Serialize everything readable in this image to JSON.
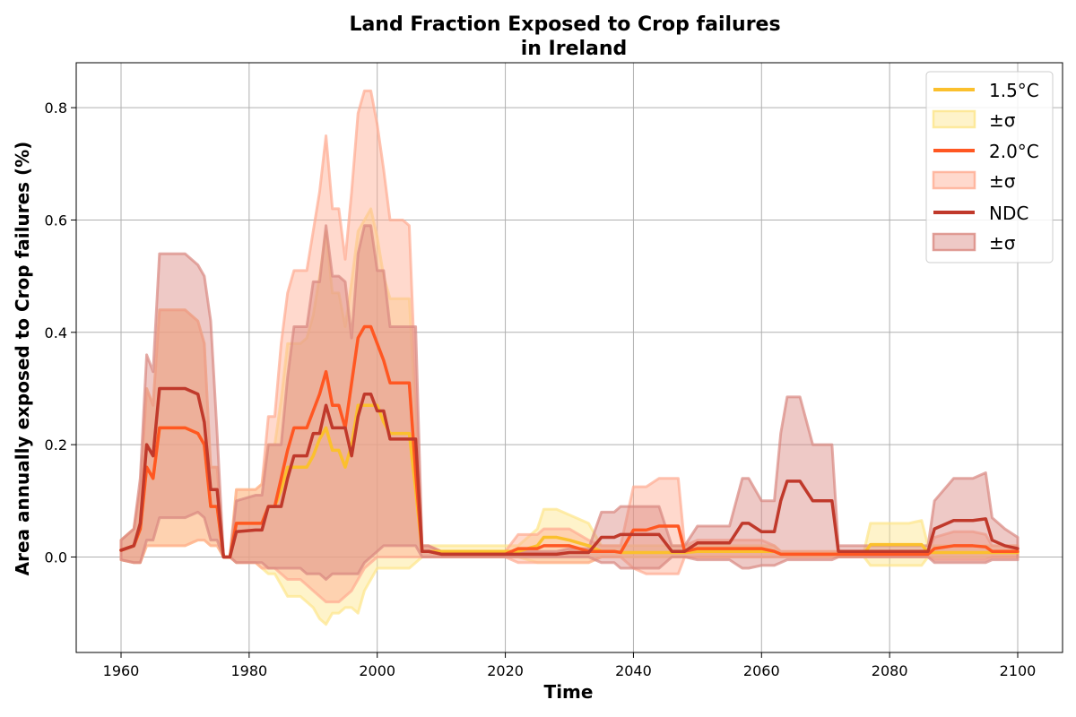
{
  "chart_data": {
    "type": "line",
    "title": "Land Fraction Exposed to Crop failures",
    "subtitle": "in Ireland",
    "xlabel": "Time",
    "ylabel": "Area annually exposed to Crop failures (%)",
    "xlim": [
      1953,
      2107
    ],
    "ylim": [
      -0.17,
      0.88
    ],
    "xticks": [
      1960,
      1980,
      2000,
      2020,
      2040,
      2060,
      2080,
      2100
    ],
    "yticks": [
      0.0,
      0.2,
      0.4,
      0.6,
      0.8
    ],
    "grid": true,
    "legend_position": "top-right",
    "legend": [
      "1.5°C",
      "±σ",
      "2.0°C",
      "±σ",
      "NDC",
      "±σ"
    ],
    "x": [
      1960,
      1962,
      1963,
      1964,
      1965,
      1966,
      1970,
      1972,
      1973,
      1974,
      1975,
      1976,
      1977,
      1978,
      1981,
      1982,
      1983,
      1984,
      1985,
      1986,
      1987,
      1988,
      1989,
      1990,
      1991,
      1992,
      1993,
      1994,
      1995,
      1996,
      1997,
      1998,
      1999,
      2000,
      2001,
      2002,
      2003,
      2004,
      2005,
      2006,
      2007,
      2008,
      2010,
      2012,
      2015,
      2020,
      2022,
      2025,
      2026,
      2028,
      2030,
      2033,
      2035,
      2036,
      2037,
      2038,
      2040,
      2042,
      2044,
      2046,
      2047,
      2048,
      2050,
      2052,
      2055,
      2057,
      2058,
      2060,
      2062,
      2063,
      2064,
      2066,
      2068,
      2070,
      2071,
      2072,
      2076,
      2077,
      2080,
      2083,
      2085,
      2086,
      2087,
      2090,
      2093,
      2095,
      2096,
      2098,
      2100
    ],
    "series": [
      {
        "name": "1.5°C",
        "color": "#fbc02d",
        "band_color": "#fde58a",
        "values": [
          0.012,
          0.02,
          0.05,
          0.16,
          0.14,
          0.23,
          0.23,
          0.22,
          0.2,
          0.09,
          0.09,
          0.0,
          0.0,
          0.06,
          0.06,
          0.06,
          0.09,
          0.09,
          0.12,
          0.16,
          0.16,
          0.16,
          0.16,
          0.18,
          0.21,
          0.23,
          0.19,
          0.19,
          0.16,
          0.2,
          0.27,
          0.27,
          0.27,
          0.27,
          0.24,
          0.22,
          0.22,
          0.22,
          0.22,
          0.12,
          0.01,
          0.01,
          0.01,
          0.01,
          0.01,
          0.01,
          0.01,
          0.02,
          0.035,
          0.035,
          0.03,
          0.02,
          0.01,
          0.01,
          0.01,
          0.008,
          0.008,
          0.008,
          0.008,
          0.008,
          0.008,
          0.008,
          0.01,
          0.01,
          0.01,
          0.01,
          0.01,
          0.01,
          0.01,
          0.005,
          0.005,
          0.005,
          0.005,
          0.005,
          0.005,
          0.005,
          0.005,
          0.022,
          0.022,
          0.022,
          0.022,
          0.008,
          0.008,
          0.008,
          0.008,
          0.008,
          0.008,
          0.008,
          0.008
        ],
        "lower": [
          -0.005,
          -0.01,
          -0.01,
          0.02,
          0.02,
          0.02,
          0.02,
          0.03,
          0.03,
          0.02,
          0.02,
          0.0,
          0.0,
          -0.01,
          -0.01,
          -0.02,
          -0.03,
          -0.03,
          -0.05,
          -0.07,
          -0.07,
          -0.07,
          -0.08,
          -0.09,
          -0.11,
          -0.12,
          -0.1,
          -0.1,
          -0.09,
          -0.09,
          -0.1,
          -0.06,
          -0.04,
          -0.02,
          -0.02,
          -0.02,
          -0.02,
          -0.02,
          -0.02,
          -0.01,
          0.0,
          0.0,
          0.0,
          0.0,
          0.0,
          0.0,
          0.0,
          -0.01,
          -0.01,
          -0.01,
          -0.01,
          -0.01,
          0.0,
          0.0,
          0.0,
          0.0,
          0.0,
          0.0,
          0.0,
          0.0,
          0.0,
          0.0,
          0.0,
          0.0,
          0.0,
          0.0,
          0.0,
          0.0,
          0.0,
          0.0,
          0.0,
          0.0,
          0.0,
          0.0,
          0.0,
          0.0,
          0.0,
          -0.015,
          -0.015,
          -0.015,
          -0.015,
          0.0,
          0.0,
          0.0,
          0.0,
          0.0,
          0.0,
          0.0,
          0.0
        ],
        "upper": [
          0.03,
          0.05,
          0.12,
          0.3,
          0.27,
          0.44,
          0.44,
          0.42,
          0.38,
          0.16,
          0.16,
          0.0,
          0.0,
          0.12,
          0.12,
          0.13,
          0.2,
          0.2,
          0.28,
          0.38,
          0.38,
          0.38,
          0.39,
          0.43,
          0.5,
          0.58,
          0.47,
          0.47,
          0.41,
          0.49,
          0.58,
          0.6,
          0.62,
          0.57,
          0.5,
          0.46,
          0.46,
          0.46,
          0.46,
          0.25,
          0.02,
          0.02,
          0.02,
          0.02,
          0.02,
          0.02,
          0.02,
          0.05,
          0.085,
          0.085,
          0.075,
          0.06,
          0.02,
          0.02,
          0.02,
          0.02,
          0.02,
          0.02,
          0.02,
          0.02,
          0.02,
          0.02,
          0.02,
          0.02,
          0.02,
          0.02,
          0.02,
          0.02,
          0.02,
          0.01,
          0.01,
          0.01,
          0.01,
          0.01,
          0.01,
          0.01,
          0.01,
          0.06,
          0.06,
          0.06,
          0.065,
          0.02,
          0.02,
          0.02,
          0.02,
          0.02,
          0.02,
          0.02,
          0.02
        ]
      },
      {
        "name": "2.0°C",
        "color": "#ff5722",
        "band_color": "#ffab91",
        "values": [
          0.012,
          0.02,
          0.05,
          0.16,
          0.14,
          0.23,
          0.23,
          0.22,
          0.2,
          0.09,
          0.09,
          0.0,
          0.0,
          0.06,
          0.06,
          0.06,
          0.09,
          0.09,
          0.14,
          0.19,
          0.23,
          0.23,
          0.23,
          0.26,
          0.29,
          0.33,
          0.27,
          0.27,
          0.23,
          0.31,
          0.39,
          0.41,
          0.41,
          0.38,
          0.35,
          0.31,
          0.31,
          0.31,
          0.31,
          0.15,
          0.01,
          0.01,
          0.005,
          0.005,
          0.005,
          0.005,
          0.015,
          0.015,
          0.02,
          0.02,
          0.02,
          0.01,
          0.01,
          0.01,
          0.01,
          0.008,
          0.048,
          0.048,
          0.055,
          0.055,
          0.055,
          0.01,
          0.015,
          0.015,
          0.015,
          0.015,
          0.015,
          0.015,
          0.01,
          0.005,
          0.005,
          0.005,
          0.005,
          0.005,
          0.005,
          0.005,
          0.005,
          0.005,
          0.005,
          0.005,
          0.005,
          0.005,
          0.015,
          0.02,
          0.02,
          0.018,
          0.01,
          0.01,
          0.01
        ],
        "lower": [
          -0.005,
          -0.01,
          -0.01,
          0.02,
          0.02,
          0.02,
          0.02,
          0.03,
          0.03,
          0.02,
          0.02,
          0.0,
          0.0,
          -0.01,
          -0.01,
          -0.02,
          -0.02,
          -0.02,
          -0.03,
          -0.04,
          -0.04,
          -0.04,
          -0.05,
          -0.06,
          -0.07,
          -0.08,
          -0.08,
          -0.08,
          -0.07,
          -0.06,
          -0.04,
          -0.02,
          -0.01,
          0.0,
          0.0,
          0.0,
          0.0,
          0.0,
          0.0,
          0.0,
          0.0,
          0.0,
          0.0,
          0.0,
          0.0,
          0.0,
          -0.01,
          -0.01,
          -0.01,
          -0.01,
          -0.01,
          -0.01,
          0.0,
          0.0,
          0.0,
          0.0,
          -0.02,
          -0.03,
          -0.03,
          -0.03,
          -0.03,
          0.0,
          0.0,
          0.0,
          0.0,
          0.0,
          0.0,
          0.0,
          0.0,
          0.0,
          0.0,
          0.0,
          0.0,
          0.0,
          0.0,
          0.0,
          0.0,
          0.0,
          0.0,
          0.0,
          0.0,
          0.0,
          -0.005,
          -0.005,
          -0.005,
          -0.005,
          0.0,
          0.0,
          0.0
        ],
        "upper": [
          0.03,
          0.05,
          0.12,
          0.3,
          0.27,
          0.44,
          0.44,
          0.42,
          0.38,
          0.16,
          0.16,
          0.0,
          0.0,
          0.12,
          0.12,
          0.13,
          0.25,
          0.25,
          0.38,
          0.47,
          0.51,
          0.51,
          0.51,
          0.58,
          0.65,
          0.75,
          0.62,
          0.62,
          0.53,
          0.65,
          0.79,
          0.83,
          0.83,
          0.77,
          0.69,
          0.6,
          0.6,
          0.6,
          0.59,
          0.3,
          0.02,
          0.02,
          0.01,
          0.01,
          0.01,
          0.01,
          0.04,
          0.04,
          0.05,
          0.05,
          0.05,
          0.03,
          0.02,
          0.02,
          0.02,
          0.02,
          0.125,
          0.125,
          0.14,
          0.14,
          0.14,
          0.02,
          0.03,
          0.03,
          0.03,
          0.03,
          0.03,
          0.03,
          0.02,
          0.01,
          0.01,
          0.01,
          0.01,
          0.01,
          0.01,
          0.01,
          0.01,
          0.01,
          0.01,
          0.01,
          0.01,
          0.01,
          0.035,
          0.045,
          0.045,
          0.04,
          0.02,
          0.02,
          0.02
        ]
      },
      {
        "name": "NDC",
        "color": "#c0392b",
        "band_color": "#d98880",
        "values": [
          0.012,
          0.02,
          0.06,
          0.2,
          0.18,
          0.3,
          0.3,
          0.29,
          0.24,
          0.12,
          0.12,
          0.0,
          0.0,
          0.045,
          0.048,
          0.048,
          0.09,
          0.09,
          0.09,
          0.14,
          0.18,
          0.18,
          0.18,
          0.22,
          0.22,
          0.27,
          0.23,
          0.23,
          0.23,
          0.18,
          0.25,
          0.29,
          0.29,
          0.26,
          0.26,
          0.21,
          0.21,
          0.21,
          0.21,
          0.21,
          0.01,
          0.01,
          0.005,
          0.005,
          0.005,
          0.005,
          0.005,
          0.005,
          0.005,
          0.005,
          0.008,
          0.008,
          0.035,
          0.035,
          0.035,
          0.04,
          0.04,
          0.04,
          0.04,
          0.01,
          0.01,
          0.01,
          0.025,
          0.025,
          0.025,
          0.06,
          0.06,
          0.045,
          0.045,
          0.1,
          0.135,
          0.135,
          0.1,
          0.1,
          0.1,
          0.01,
          0.01,
          0.01,
          0.01,
          0.01,
          0.01,
          0.01,
          0.05,
          0.065,
          0.065,
          0.068,
          0.03,
          0.02,
          0.015
        ],
        "lower": [
          -0.005,
          -0.01,
          -0.01,
          0.03,
          0.03,
          0.07,
          0.07,
          0.08,
          0.07,
          0.03,
          0.03,
          0.0,
          0.0,
          -0.01,
          -0.01,
          -0.01,
          -0.02,
          -0.02,
          -0.02,
          -0.02,
          -0.02,
          -0.02,
          -0.03,
          -0.03,
          -0.03,
          -0.04,
          -0.03,
          -0.03,
          -0.03,
          -0.03,
          -0.03,
          -0.01,
          0.0,
          0.01,
          0.02,
          0.02,
          0.02,
          0.02,
          0.02,
          0.02,
          0.0,
          0.0,
          0.0,
          0.0,
          0.0,
          0.0,
          0.0,
          0.0,
          0.0,
          0.0,
          0.0,
          0.0,
          -0.01,
          -0.01,
          -0.01,
          -0.02,
          -0.02,
          -0.02,
          -0.02,
          0.0,
          0.0,
          0.0,
          -0.005,
          -0.005,
          -0.005,
          -0.02,
          -0.02,
          -0.015,
          -0.015,
          -0.01,
          -0.005,
          -0.005,
          -0.005,
          -0.005,
          -0.005,
          0.0,
          0.0,
          0.0,
          0.0,
          0.0,
          0.0,
          0.0,
          -0.01,
          -0.01,
          -0.01,
          -0.01,
          -0.005,
          -0.005,
          -0.005
        ],
        "upper": [
          0.03,
          0.05,
          0.14,
          0.36,
          0.33,
          0.54,
          0.54,
          0.52,
          0.5,
          0.42,
          0.22,
          0.0,
          0.0,
          0.1,
          0.11,
          0.11,
          0.2,
          0.2,
          0.2,
          0.32,
          0.41,
          0.41,
          0.41,
          0.49,
          0.49,
          0.59,
          0.5,
          0.5,
          0.49,
          0.39,
          0.54,
          0.59,
          0.59,
          0.51,
          0.51,
          0.41,
          0.41,
          0.41,
          0.41,
          0.41,
          0.02,
          0.02,
          0.01,
          0.01,
          0.01,
          0.01,
          0.01,
          0.01,
          0.01,
          0.01,
          0.015,
          0.015,
          0.08,
          0.08,
          0.08,
          0.09,
          0.09,
          0.09,
          0.09,
          0.02,
          0.02,
          0.02,
          0.055,
          0.055,
          0.055,
          0.14,
          0.14,
          0.1,
          0.1,
          0.22,
          0.285,
          0.285,
          0.2,
          0.2,
          0.2,
          0.02,
          0.02,
          0.02,
          0.02,
          0.02,
          0.02,
          0.02,
          0.1,
          0.14,
          0.14,
          0.15,
          0.07,
          0.05,
          0.035
        ]
      }
    ]
  }
}
